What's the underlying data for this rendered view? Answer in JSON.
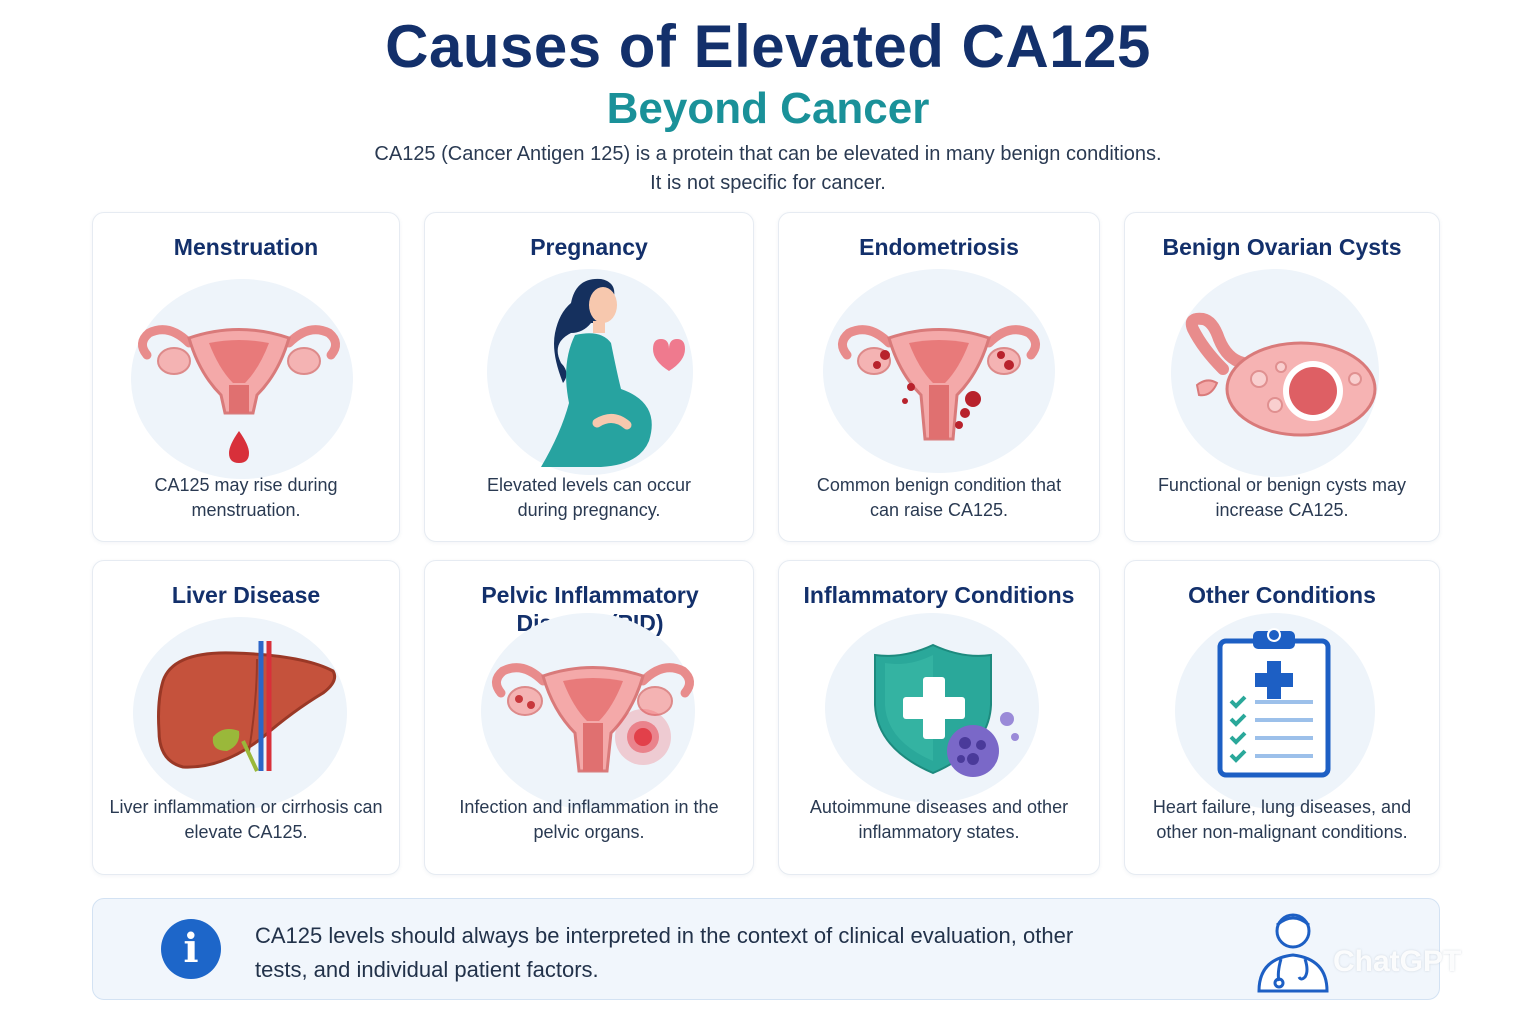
{
  "header": {
    "title": "Causes of Elevated CA125",
    "subtitle": "Beyond Cancer",
    "intro": "CA125 (Cancer Antigen 125) is a protein that can be elevated in many benign conditions. It is not specific for cancer."
  },
  "cards": [
    {
      "title": "Menstruation",
      "desc": "CA125 may rise during menstruation.",
      "icon": "uterus-blood-drop-icon"
    },
    {
      "title": "Pregnancy",
      "desc": "Elevated levels can occur during pregnancy.",
      "icon": "pregnant-woman-icon"
    },
    {
      "title": "Endometriosis",
      "desc": "Common benign condition that can raise CA125.",
      "icon": "uterus-endometriosis-icon"
    },
    {
      "title": "Benign Ovarian Cysts",
      "desc": "Functional or benign cysts may increase CA125.",
      "icon": "ovarian-cyst-icon"
    },
    {
      "title": "Liver Disease",
      "desc": "Liver inflammation or cirrhosis can elevate CA125.",
      "icon": "liver-icon"
    },
    {
      "title": "Pelvic Inflammatory Disease (PID)",
      "desc": "Infection and inflammation in the pelvic organs.",
      "icon": "uterus-inflammation-icon"
    },
    {
      "title": "Inflammatory Conditions",
      "desc": "Autoimmune diseases and other inflammatory states.",
      "icon": "shield-virus-icon"
    },
    {
      "title": "Other Conditions",
      "desc": "Heart failure, lung diseases, and other non-malignant conditions.",
      "icon": "clipboard-checklist-icon"
    }
  ],
  "note": {
    "text": "CA125 levels should always be interpreted in the context of clinical evaluation, other tests, and individual patient factors.",
    "info_glyph": "i",
    "watermark": "ChatGPT"
  },
  "colors": {
    "title": "#13306b",
    "subtitle": "#1a9199",
    "uterus": "#f0a0a0",
    "uterus_dark": "#d86060",
    "blood": "#d8303a",
    "teal": "#2aa89a",
    "info": "#1d66c9"
  }
}
